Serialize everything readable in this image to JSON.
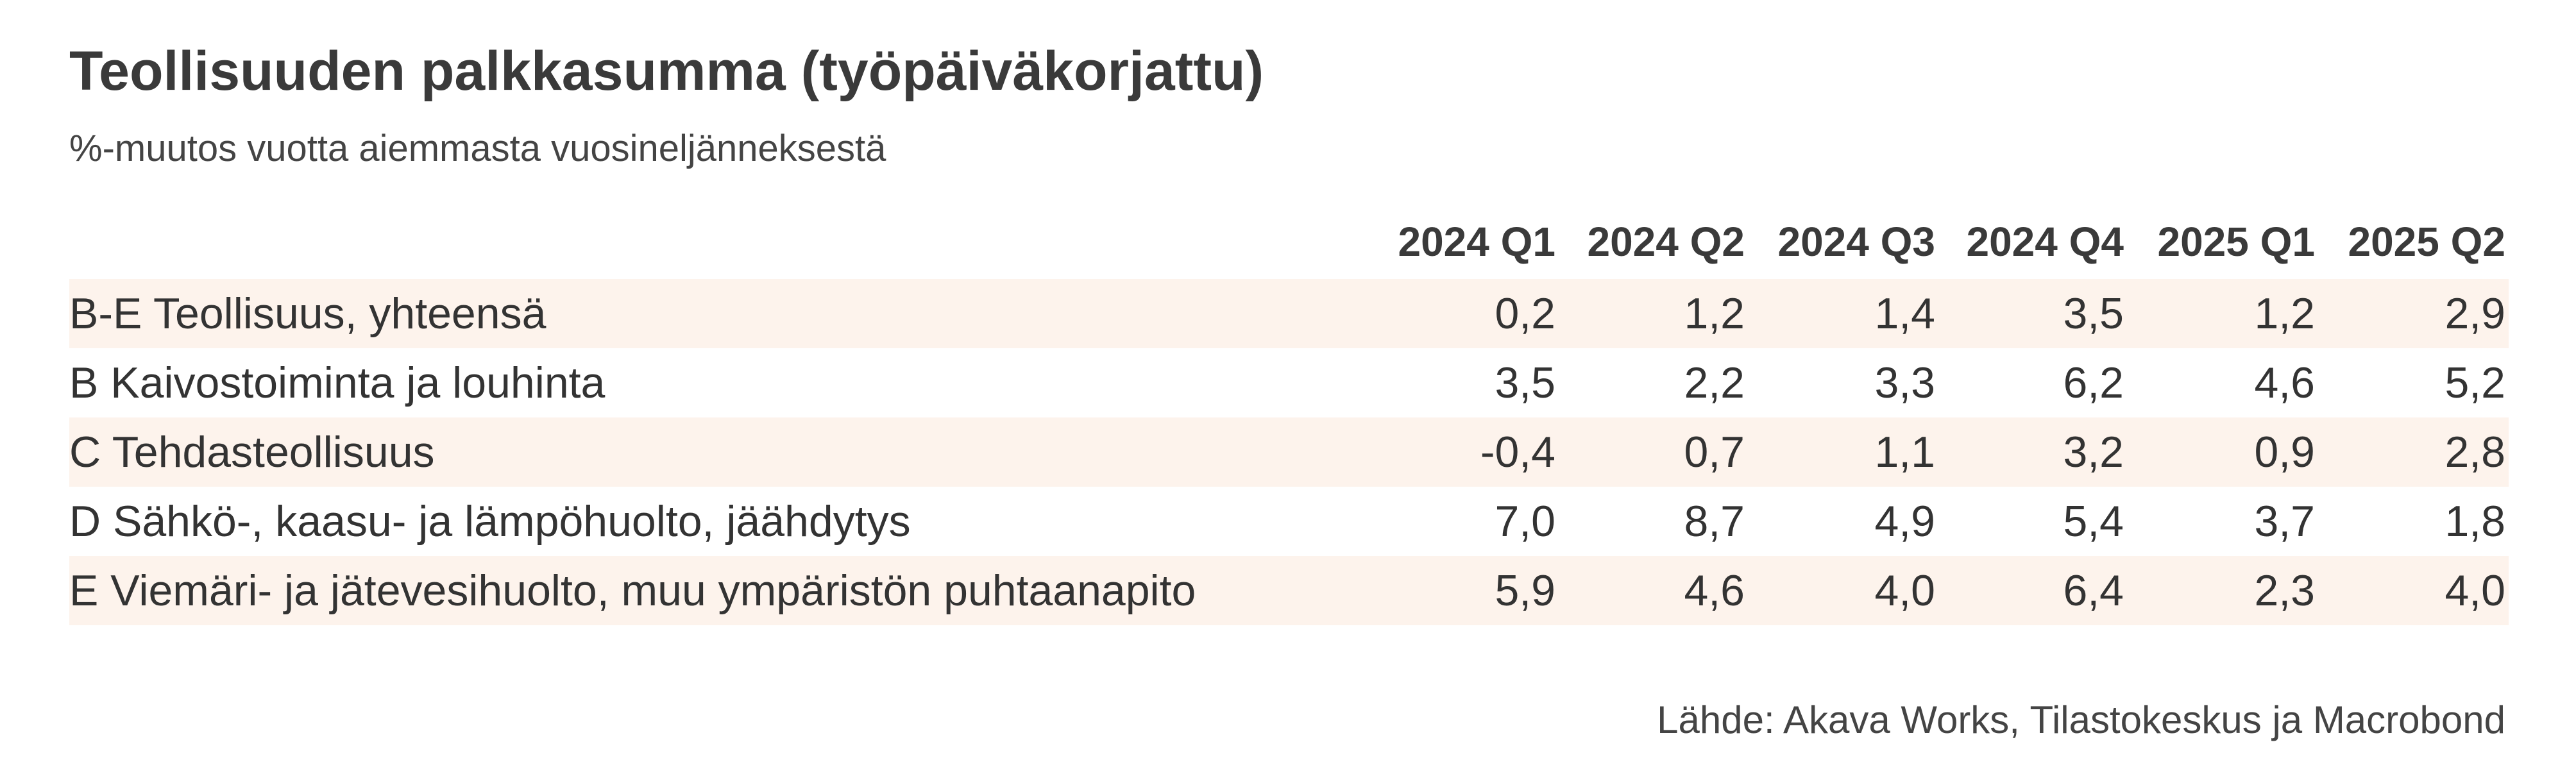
{
  "header": {
    "title": "Teollisuuden palkkasumma (työpäiväkorjattu)",
    "subtitle": "%-muutos vuotta aiemmasta vuosineljänneksestä"
  },
  "table": {
    "columns": [
      "2024 Q1",
      "2024 Q2",
      "2024 Q3",
      "2024 Q4",
      "2025 Q1",
      "2025 Q2"
    ],
    "rows": [
      [
        "B-E Teollisuus, yhteensä",
        "0,2",
        "1,2",
        "1,4",
        "3,5",
        "1,2",
        "2,9"
      ],
      [
        "B Kaivostoiminta ja louhinta",
        "3,5",
        "2,2",
        "3,3",
        "6,2",
        "4,6",
        "5,2"
      ],
      [
        "C Tehdasteollisuus",
        "-0,4",
        "0,7",
        "1,1",
        "3,2",
        "0,9",
        "2,8"
      ],
      [
        "D Sähkö-, kaasu- ja lämpöhuolto, jäähdytys",
        "7,0",
        "8,7",
        "4,9",
        "5,4",
        "3,7",
        "1,8"
      ],
      [
        "E Viemäri- ja jätevesihuolto, muu ympäristön puhtaanapito",
        "5,9",
        "4,6",
        "4,0",
        "6,4",
        "2,3",
        "4,0"
      ]
    ]
  },
  "source": "Lähde: Akava Works, Tilastokeskus ja Macrobond"
}
